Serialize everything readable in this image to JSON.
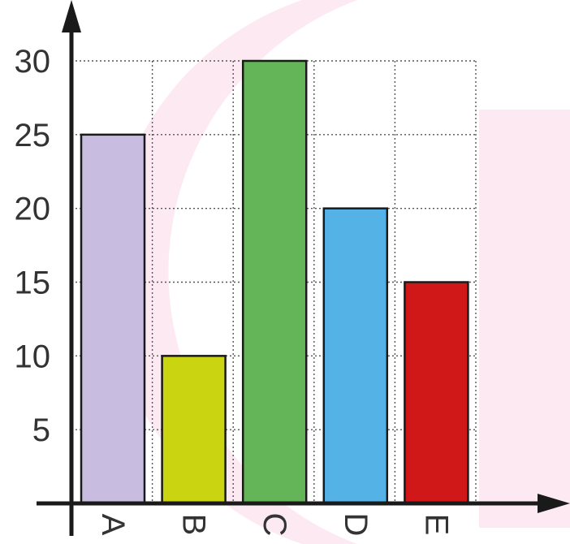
{
  "chart_data": {
    "type": "bar",
    "categories": [
      "A",
      "B",
      "C",
      "D",
      "E"
    ],
    "values": [
      25,
      10,
      30,
      20,
      15
    ],
    "bar_colors": [
      "#c8bde0",
      "#cbd410",
      "#63b558",
      "#55b2e6",
      "#d01818"
    ],
    "y_ticks": [
      5,
      10,
      15,
      20,
      25,
      30
    ],
    "ylim": [
      0,
      30
    ],
    "grid": true,
    "category_labels_rotated": true,
    "title": "",
    "xlabel": "",
    "ylabel": ""
  },
  "background_watermark_color": "#fbe2ee"
}
